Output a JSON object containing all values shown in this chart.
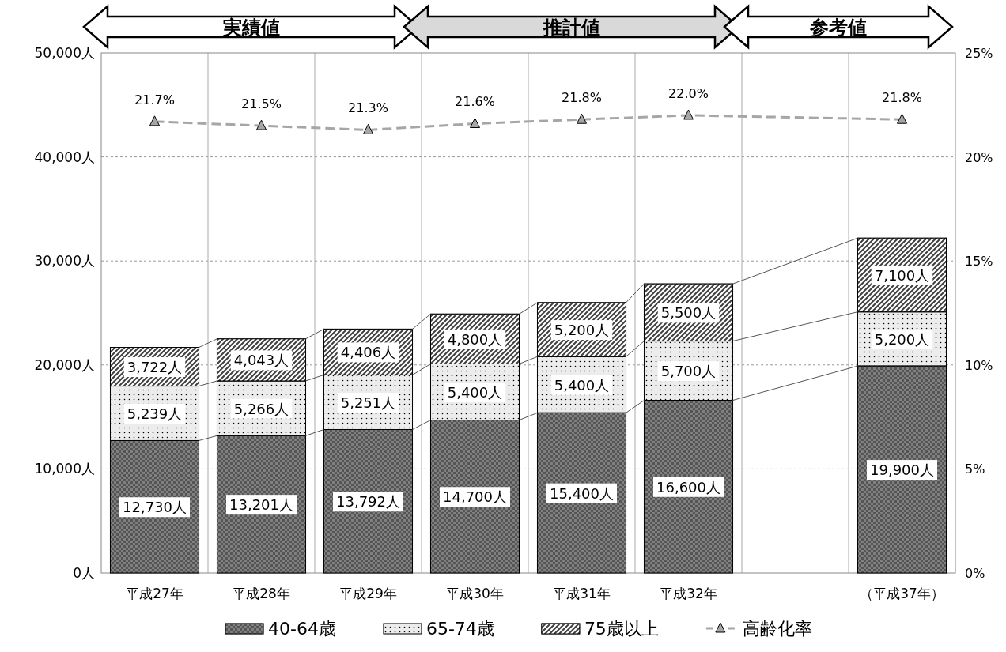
{
  "chart_data": {
    "type": "bar",
    "stacked": true,
    "categories": [
      "平成27年",
      "平成28年",
      "平成29年",
      "平成30年",
      "平成31年",
      "平成32年",
      null,
      "（平成37年）"
    ],
    "series": [
      {
        "name": "40-64歳",
        "color": "#808080",
        "values": [
          12730,
          13201,
          13792,
          14700,
          15400,
          16600,
          null,
          19900
        ],
        "value_labels": [
          "12,730人",
          "13,201人",
          "13,792人",
          "14,700人",
          "15,400人",
          "16,600人",
          null,
          "19,900人"
        ]
      },
      {
        "name": "65-74歳",
        "color": "#ececec",
        "values": [
          5239,
          5266,
          5251,
          5400,
          5400,
          5700,
          null,
          5200
        ],
        "value_labels": [
          "5,239人",
          "5,266人",
          "5,251人",
          "5,400人",
          "5,400人",
          "5,700人",
          null,
          "5,200人"
        ]
      },
      {
        "name": "75歳以上",
        "color": "#404040",
        "values": [
          3722,
          4043,
          4406,
          4800,
          5200,
          5500,
          null,
          7100
        ],
        "value_labels": [
          "3,722人",
          "4,043人",
          "4,406人",
          "4,800人",
          "5,200人",
          "5,500人",
          null,
          "7,100人"
        ]
      },
      {
        "name": "高齢化率",
        "type": "line",
        "axis": "y2",
        "color": "#a6a6a6",
        "marker": "triangle",
        "line_style": "dashed",
        "values": [
          21.7,
          21.5,
          21.3,
          21.6,
          21.8,
          22.0,
          null,
          21.8
        ],
        "value_labels": [
          "21.7%",
          "21.5%",
          "21.3%",
          "21.6%",
          "21.8%",
          "22.0%",
          null,
          "21.8%"
        ]
      }
    ],
    "ylim": [
      0,
      50000
    ],
    "yticks": [
      {
        "value": 0,
        "label": "0人"
      },
      {
        "value": 10000,
        "label": "10,000人"
      },
      {
        "value": 20000,
        "label": "20,000人"
      },
      {
        "value": 30000,
        "label": "30,000人"
      },
      {
        "value": 40000,
        "label": "40,000人"
      },
      {
        "value": 50000,
        "label": "50,000人"
      }
    ],
    "y2lim": [
      0,
      25
    ],
    "y2ticks": [
      {
        "value": 0,
        "label": "0%"
      },
      {
        "value": 5,
        "label": "5%"
      },
      {
        "value": 10,
        "label": "10%"
      },
      {
        "value": 15,
        "label": "15%"
      },
      {
        "value": 20,
        "label": "20%"
      },
      {
        "value": 25,
        "label": "25%"
      }
    ],
    "grid": true,
    "legend": "bottom",
    "annotations": [
      "実績値",
      "推計値",
      "参考値"
    ]
  }
}
